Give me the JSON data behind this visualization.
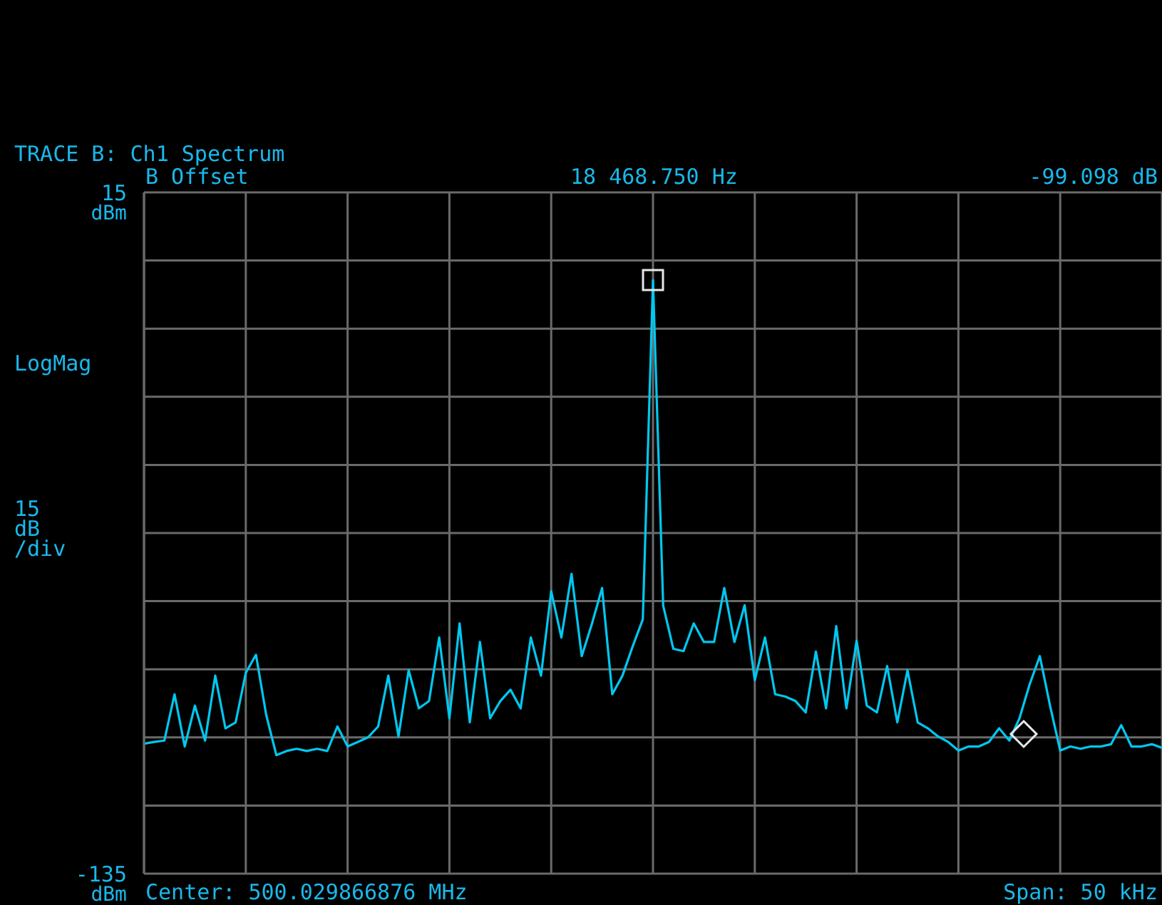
{
  "chart_data": {
    "type": "line",
    "title": "TRACE B: Ch1 Spectrum",
    "annotations": [
      "B Offset",
      "18 468.750 Hz",
      "-99.098 dB",
      "LogMag",
      "15 dB /div",
      "Center: 500.029866876 MHz",
      "Span: 50 kHz"
    ],
    "categories": [
      null,
      null,
      null,
      null,
      null,
      null,
      null,
      null,
      null,
      null,
      null,
      null,
      null,
      null,
      null,
      null,
      null,
      null,
      null,
      null,
      null,
      null,
      null,
      null,
      null,
      null,
      null,
      null,
      null,
      null,
      null,
      null,
      null,
      null,
      null,
      null,
      null,
      null,
      null,
      null,
      null,
      null,
      null,
      null,
      null,
      null,
      null,
      null,
      null,
      null,
      null,
      null,
      null,
      null,
      null,
      null,
      null,
      null,
      null,
      null,
      null,
      null,
      null,
      null,
      null,
      null,
      null,
      null,
      null,
      null,
      null,
      null,
      null,
      null,
      null,
      null,
      null,
      null,
      null,
      null,
      null,
      null,
      null,
      null,
      null,
      null,
      null,
      null,
      null,
      null,
      null,
      null,
      null,
      null,
      null,
      null,
      null,
      null,
      null,
      null,
      null
    ],
    "ylim": [
      -135,
      15
    ],
    "ylabel": "dBm",
    "yticks": [
      15,
      {
        "value": 0,
        "label": null
      },
      {
        "value": -15,
        "label": null
      },
      {
        "value": -30,
        "label": null
      },
      {
        "value": -45,
        "label": null
      },
      {
        "value": -60,
        "label": null
      },
      {
        "value": -75,
        "label": null
      },
      {
        "value": -90,
        "label": null
      },
      {
        "value": -105,
        "label": null
      },
      {
        "value": -120,
        "label": null
      },
      -135
    ],
    "tick_labels": "y",
    "grid": true,
    "series": [
      {
        "type": "line",
        "color": "#00c8f0",
        "marker": "none",
        "line_style": "solid",
        "values": [
          -106.4,
          -106,
          -105.7,
          -95.5,
          -107,
          -98,
          -105.7,
          -91.4,
          -103,
          -101.7,
          -90.8,
          -86.8,
          -100,
          -108.9,
          -108,
          -107.5,
          -108,
          -107.5,
          -108,
          -102.6,
          -107,
          -106,
          -105,
          -102.6,
          -91.4,
          -104.8,
          -90.2,
          -98.6,
          -97,
          -83,
          -100.8,
          -79.9,
          -101.7,
          -84,
          -100.8,
          -97,
          -94.5,
          -98.6,
          -83,
          -91.4,
          -72.8,
          -83,
          -69,
          -87.1,
          -80,
          -72.1,
          -95.5,
          -91.4,
          -85,
          -79,
          -4.3,
          -76,
          -85.5,
          -86,
          -79.9,
          -84,
          -84,
          -72.1,
          -84,
          -75.9,
          -92.4,
          -83,
          -95.5,
          -96,
          -97,
          -99.5,
          -86.1,
          -98.6,
          -80.5,
          -98.6,
          -83.7,
          -98,
          -99.5,
          -89.3,
          -101.7,
          -90.2,
          -101.7,
          -103,
          -104.8,
          -106,
          -107.9,
          -107,
          -107,
          -106,
          -103,
          -105.7,
          -100.8,
          -93.3,
          -87.1,
          -98,
          -107.9,
          -107,
          -107.5,
          -107,
          -107,
          -106.5,
          -102.3,
          -107,
          -107,
          -106.5,
          -107.3
        ]
      }
    ]
  }
}
